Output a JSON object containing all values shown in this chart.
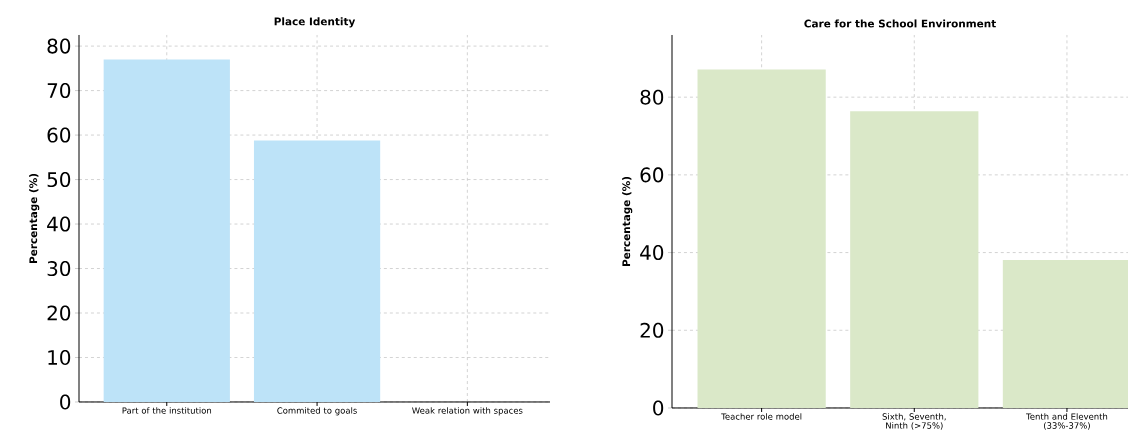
{
  "chart_data": [
    {
      "type": "bar",
      "title": "Place Identity",
      "ylabel": "Percentage (%)",
      "categories": [
        "Part of the institution",
        "Commited to goals",
        "Weak relation with spaces"
      ],
      "values": [
        77,
        58.8,
        0
      ],
      "color": "#bde3f8",
      "ylim": [
        0,
        82.5
      ],
      "yticks": [
        0,
        10,
        20,
        30,
        40,
        50,
        60,
        70,
        80
      ],
      "grid": true
    },
    {
      "type": "bar",
      "title": "Care for the School Environment",
      "ylabel": "Percentage (%)",
      "categories": [
        "Teacher role model",
        "Sixth, Seventh, Ninth (>75%)",
        "Tenth and Eleventh (33%-37%)"
      ],
      "values": [
        87.1,
        76.4,
        38.1
      ],
      "color": "#dae8c8",
      "ylim": [
        0,
        96
      ],
      "yticks": [
        0,
        20,
        40,
        60,
        80
      ],
      "grid": true
    }
  ]
}
